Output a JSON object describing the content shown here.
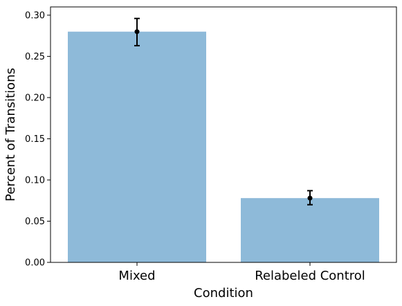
{
  "chart_data": {
    "type": "bar",
    "categories": [
      "Mixed",
      "Relabeled Control"
    ],
    "values": [
      0.28,
      0.078
    ],
    "error_low": [
      0.263,
      0.07
    ],
    "error_high": [
      0.296,
      0.087
    ],
    "xlabel": "Condition",
    "ylabel": "Percent of Transitions",
    "ylim": [
      0,
      0.31
    ],
    "yticks": [
      0.0,
      0.05,
      0.1,
      0.15,
      0.2,
      0.25,
      0.3
    ],
    "ytick_labels": [
      "0.00",
      "0.05",
      "0.10",
      "0.15",
      "0.20",
      "0.25",
      "0.30"
    ],
    "bar_color": "#8ebad9",
    "error_color": "#000000",
    "grid": false
  }
}
